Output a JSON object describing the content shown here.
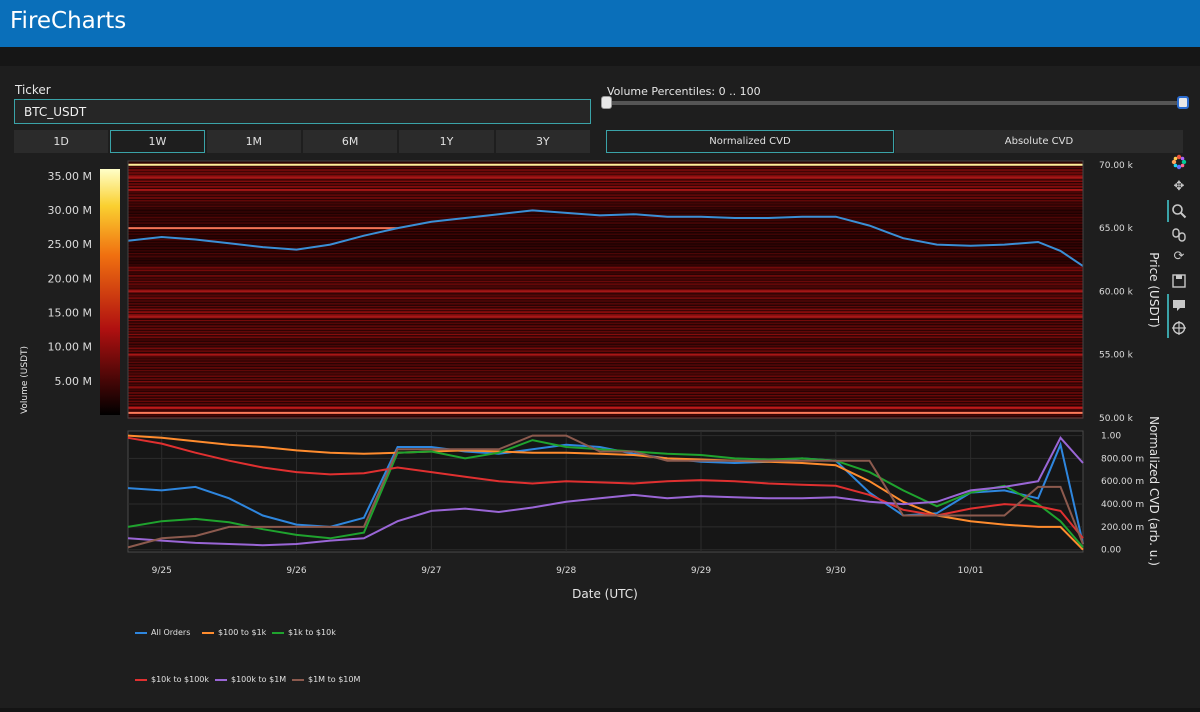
{
  "app": {
    "title": "FireCharts"
  },
  "ticker": {
    "label": "Ticker",
    "value": "BTC_USDT"
  },
  "timeframes": [
    {
      "label": "1D",
      "active": false
    },
    {
      "label": "1W",
      "active": true
    },
    {
      "label": "1M",
      "active": false
    },
    {
      "label": "6M",
      "active": false
    },
    {
      "label": "1Y",
      "active": false
    },
    {
      "label": "3Y",
      "active": false
    }
  ],
  "volume_percentiles": {
    "label": "Volume Percentiles: 0 .. 100",
    "min": 0,
    "max": 100
  },
  "cvd_modes": [
    {
      "label": "Normalized CVD",
      "active": true
    },
    {
      "label": "Absolute CVD",
      "active": false
    }
  ],
  "toolbar_icons": [
    "plotly-logo-icon",
    "pan-icon",
    "zoom-icon",
    "box-zoom-icon",
    "reset-icon",
    "save-icon",
    "hover-icon",
    "spike-icon"
  ],
  "colors": {
    "header": "#0a6fba",
    "accent": "#3aa3a8",
    "price_line": "#3a8fd6"
  },
  "chart_data": [
    {
      "type": "heatmap",
      "title": "",
      "xlabel": "Date (UTC)",
      "ylabel": "Price (USDT)",
      "colorbar_label": "Volume (USDT)",
      "colorbar_ticks": [
        "5.00 M",
        "10.00 M",
        "15.00 M",
        "20.00 M",
        "25.00 M",
        "30.00 M",
        "35.00 M"
      ],
      "colorbar_range": [
        0,
        36000000
      ],
      "y_ticks": [
        "50.00 k",
        "55.00 k",
        "60.00 k",
        "65.00 k",
        "70.00 k"
      ],
      "y_tick_values": [
        50000,
        55000,
        60000,
        65000,
        70000
      ],
      "ylim": [
        50000,
        70300
      ],
      "x_ticks": [
        "9/25",
        "9/26",
        "9/27",
        "9/28",
        "9/29",
        "9/30",
        "10/01"
      ],
      "xlim": [
        "2024-09-24T18:00",
        "2024-10-01T20:00"
      ],
      "price_series": {
        "name": "",
        "x": [
          "2024-09-24T18:00",
          "2024-09-25T00:00",
          "2024-09-25T06:00",
          "2024-09-25T12:00",
          "2024-09-25T18:00",
          "2024-09-26T00:00",
          "2024-09-26T06:00",
          "2024-09-26T12:00",
          "2024-09-26T18:00",
          "2024-09-27T00:00",
          "2024-09-27T06:00",
          "2024-09-27T12:00",
          "2024-09-27T18:00",
          "2024-09-28T00:00",
          "2024-09-28T06:00",
          "2024-09-28T12:00",
          "2024-09-28T18:00",
          "2024-09-29T00:00",
          "2024-09-29T06:00",
          "2024-09-29T12:00",
          "2024-09-29T18:00",
          "2024-09-30T00:00",
          "2024-09-30T06:00",
          "2024-09-30T12:00",
          "2024-09-30T18:00",
          "2024-10-01T00:00",
          "2024-10-01T06:00",
          "2024-10-01T12:00",
          "2024-10-01T16:00",
          "2024-10-01T20:00"
        ],
        "y": [
          64000,
          64300,
          64100,
          63800,
          63500,
          63300,
          63700,
          64400,
          65000,
          65500,
          65800,
          66100,
          66400,
          66200,
          66000,
          66100,
          65900,
          65900,
          65800,
          65800,
          65900,
          65900,
          65200,
          64200,
          63700,
          63600,
          63700,
          63900,
          63200,
          62000
        ]
      },
      "bright_levels": [
        {
          "price": 70000,
          "intensity": 1.0
        },
        {
          "price": 65000,
          "intensity": 0.85,
          "x_end": "2024-09-26T18:00"
        },
        {
          "price": 50400,
          "intensity": 0.9
        },
        {
          "price": 50800,
          "intensity": 0.7
        },
        {
          "price": 60000,
          "intensity": 0.6
        },
        {
          "price": 58000,
          "intensity": 0.6
        },
        {
          "price": 55000,
          "intensity": 0.55
        },
        {
          "price": 69000,
          "intensity": 0.55
        },
        {
          "price": 68000,
          "intensity": 0.5
        }
      ]
    },
    {
      "type": "line",
      "title": "",
      "xlabel": "Date (UTC)",
      "ylabel": "Normalized CVD (arb. u.)",
      "y_ticks": [
        "0.00",
        "200.00 m",
        "400.00 m",
        "600.00 m",
        "800.00 m",
        "1.00"
      ],
      "y_tick_values": [
        0,
        0.2,
        0.4,
        0.6,
        0.8,
        1.0
      ],
      "ylim": [
        -0.02,
        1.04
      ],
      "x_ticks": [
        "9/25",
        "9/26",
        "9/27",
        "9/28",
        "9/29",
        "9/30",
        "10/01"
      ],
      "xlim": [
        "2024-09-24T18:00",
        "2024-10-01T20:00"
      ],
      "legend_placement": "bottom",
      "x": [
        "2024-09-24T18:00",
        "2024-09-25T00:00",
        "2024-09-25T06:00",
        "2024-09-25T12:00",
        "2024-09-25T18:00",
        "2024-09-26T00:00",
        "2024-09-26T06:00",
        "2024-09-26T12:00",
        "2024-09-26T18:00",
        "2024-09-27T00:00",
        "2024-09-27T06:00",
        "2024-09-27T12:00",
        "2024-09-27T18:00",
        "2024-09-28T00:00",
        "2024-09-28T06:00",
        "2024-09-28T12:00",
        "2024-09-28T18:00",
        "2024-09-29T00:00",
        "2024-09-29T06:00",
        "2024-09-29T12:00",
        "2024-09-29T18:00",
        "2024-09-30T00:00",
        "2024-09-30T06:00",
        "2024-09-30T12:00",
        "2024-09-30T18:00",
        "2024-10-01T00:00",
        "2024-10-01T06:00",
        "2024-10-01T12:00",
        "2024-10-01T16:00",
        "2024-10-01T20:00"
      ],
      "series": [
        {
          "name": "All Orders",
          "color": "#2e86de",
          "values": [
            0.54,
            0.52,
            0.55,
            0.45,
            0.3,
            0.22,
            0.2,
            0.28,
            0.9,
            0.9,
            0.86,
            0.84,
            0.88,
            0.92,
            0.9,
            0.84,
            0.8,
            0.77,
            0.76,
            0.77,
            0.8,
            0.78,
            0.5,
            0.3,
            0.32,
            0.5,
            0.52,
            0.45,
            0.92,
            0.05
          ]
        },
        {
          "name": "$100 to $1k",
          "color": "#ff8c2e",
          "values": [
            1.0,
            0.98,
            0.95,
            0.92,
            0.9,
            0.87,
            0.85,
            0.84,
            0.85,
            0.86,
            0.87,
            0.86,
            0.85,
            0.85,
            0.84,
            0.83,
            0.8,
            0.79,
            0.78,
            0.77,
            0.76,
            0.74,
            0.6,
            0.42,
            0.3,
            0.25,
            0.22,
            0.2,
            0.2,
            0.0
          ]
        },
        {
          "name": "$1k to $10k",
          "color": "#1fa32e",
          "values": [
            0.2,
            0.25,
            0.27,
            0.24,
            0.18,
            0.13,
            0.1,
            0.15,
            0.85,
            0.86,
            0.8,
            0.85,
            0.96,
            0.9,
            0.88,
            0.86,
            0.84,
            0.83,
            0.8,
            0.79,
            0.8,
            0.78,
            0.68,
            0.52,
            0.38,
            0.5,
            0.56,
            0.4,
            0.25,
            0.02
          ]
        },
        {
          "name": "$10k to $100k",
          "color": "#e03030",
          "values": [
            0.98,
            0.93,
            0.85,
            0.78,
            0.72,
            0.68,
            0.66,
            0.67,
            0.72,
            0.68,
            0.64,
            0.6,
            0.58,
            0.6,
            0.59,
            0.58,
            0.6,
            0.61,
            0.6,
            0.58,
            0.57,
            0.56,
            0.48,
            0.35,
            0.3,
            0.36,
            0.4,
            0.38,
            0.34,
            0.1
          ]
        },
        {
          "name": "$100k to $1M",
          "color": "#9a66d6",
          "values": [
            0.1,
            0.08,
            0.06,
            0.05,
            0.04,
            0.05,
            0.08,
            0.1,
            0.25,
            0.34,
            0.36,
            0.33,
            0.37,
            0.42,
            0.45,
            0.48,
            0.45,
            0.47,
            0.46,
            0.45,
            0.45,
            0.46,
            0.42,
            0.4,
            0.42,
            0.52,
            0.55,
            0.6,
            0.98,
            0.76
          ]
        },
        {
          "name": "$1M to $10M",
          "color": "#8c5a4e",
          "values": [
            0.02,
            0.1,
            0.12,
            0.2,
            0.2,
            0.2,
            0.2,
            0.2,
            0.88,
            0.88,
            0.88,
            0.88,
            1.0,
            1.0,
            0.86,
            0.86,
            0.78,
            0.78,
            0.78,
            0.78,
            0.78,
            0.78,
            0.78,
            0.3,
            0.3,
            0.3,
            0.3,
            0.55,
            0.55,
            0.05
          ]
        }
      ]
    }
  ]
}
